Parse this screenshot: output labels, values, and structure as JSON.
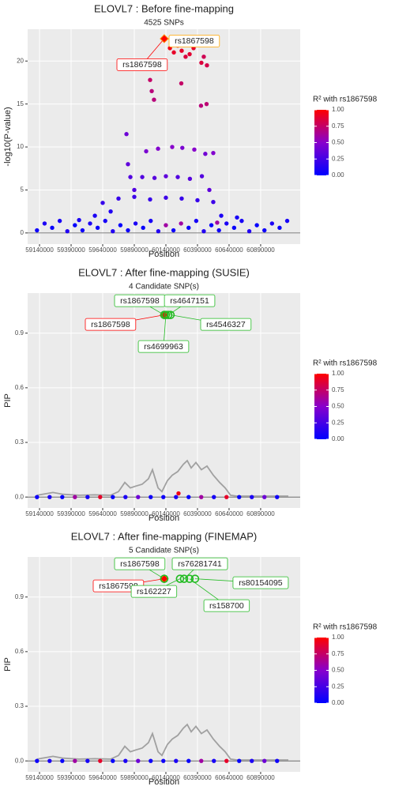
{
  "chart_data": [
    {
      "type": "scatter",
      "title": "ELOVL7 : Before fine-mapping",
      "subtitle": "4525 SNPs",
      "xlabel": "Position",
      "ylabel": "-log10(P-value)",
      "x": [
        60127000,
        60172000,
        60203000,
        60234000,
        60265000,
        60296000,
        60328000,
        60359000,
        60421000,
        60440000,
        60465000,
        60015000,
        60028000,
        60046000,
        60262000,
        60418000,
        60462000,
        59984000,
        60078000,
        60190000,
        60270000,
        60365000,
        60452000,
        60515000,
        59828000,
        59840000,
        59859000,
        59890000,
        59953000,
        60050000,
        60140000,
        60234000,
        60330000,
        60425000,
        60484000,
        59640000,
        59765000,
        59890000,
        60015000,
        60140000,
        60265000,
        60390000,
        60515000,
        59453000,
        59578000,
        59703000,
        60578000,
        60703000,
        60546000,
        59120000,
        59180000,
        59240000,
        59300000,
        59360000,
        59420000,
        59480000,
        59540000,
        59600000,
        59660000,
        59720000,
        59780000,
        59840000,
        59900000,
        59960000,
        60020000,
        60080000,
        60140000,
        60200000,
        60260000,
        60320000,
        60380000,
        60440000,
        60500000,
        60560000,
        60620000,
        60680000,
        60740000,
        60800000,
        60860000,
        60920000,
        60980000,
        61040000,
        61100000
      ],
      "values": [
        22.6,
        21.5,
        21,
        21.8,
        21.2,
        20.5,
        20.8,
        21.5,
        19.8,
        20.5,
        19.5,
        17.8,
        16.5,
        15.5,
        17.4,
        14.8,
        15,
        9.5,
        9.8,
        10,
        9.9,
        9.7,
        9.2,
        9.3,
        11.5,
        8,
        6.5,
        5,
        6.5,
        6.4,
        6.6,
        6.5,
        6.3,
        6.6,
        5,
        3.5,
        4,
        4.2,
        3.9,
        4.1,
        4,
        3.8,
        3.6,
        1.5,
        2,
        2.5,
        2,
        1.8,
        1.2,
        0.3,
        1.1,
        0.6,
        1.4,
        0.2,
        0.9,
        0.3,
        1.1,
        0.6,
        1.4,
        0.2,
        0.9,
        0.3,
        1.1,
        0.6,
        1.4,
        0.2,
        0.9,
        0.3,
        1.1,
        0.6,
        1.4,
        0.2,
        0.9,
        0.3,
        1.1,
        0.6,
        1.4,
        0.2,
        0.9,
        0.3,
        1.1,
        0.6,
        1.4
      ],
      "r2": [
        1,
        0.95,
        0.9,
        0.92,
        0.9,
        0.85,
        0.88,
        0.9,
        0.85,
        0.8,
        0.82,
        0.75,
        0.7,
        0.7,
        0.75,
        0.7,
        0.72,
        0.45,
        0.48,
        0.5,
        0.45,
        0.5,
        0.42,
        0.48,
        0.4,
        0.35,
        0.3,
        0.3,
        0.3,
        0.32,
        0.35,
        0.3,
        0.32,
        0.3,
        0.35,
        0.2,
        0.2,
        0.22,
        0.2,
        0.22,
        0.2,
        0.2,
        0.22,
        0.1,
        0.1,
        0.12,
        0.1,
        0.08,
        0.6,
        0.05,
        0.1,
        0.03,
        0.08,
        0.12,
        0.02,
        0.05,
        0.1,
        0.03,
        0.08,
        0.12,
        0.02,
        0.05,
        0.1,
        0.03,
        0.08,
        0.12,
        0.6,
        0.05,
        0.6,
        0.03,
        0.08,
        0.12,
        0.02,
        0.05,
        0.1,
        0.03,
        0.08,
        0.12,
        0.02,
        0.05,
        0.1,
        0.03,
        0.08
      ],
      "xlim": [
        59046000,
        61203000
      ],
      "xticks": [
        59140000,
        59390000,
        59640000,
        59890000,
        60140000,
        60390000,
        60640000,
        60890000
      ],
      "ylim": [
        -1.3,
        23.7
      ],
      "yticks": [
        0,
        5,
        10,
        15,
        20
      ],
      "hline": 0,
      "grid": true,
      "annotations": [
        {
          "label": "rs1867598",
          "color": "#ff0000",
          "x": 60127000,
          "y": 22.6,
          "marker": "diamond"
        },
        {
          "label": "rs1867598",
          "color": "#ffa500",
          "x": 60127000,
          "y": 22.6
        }
      ],
      "colorbar": {
        "title": "R² with rs1867598",
        "colors": [
          "#0000ff",
          "#8800cc",
          "#ff0000"
        ],
        "ticks": [
          {
            "value": 0,
            "label": "0.00"
          },
          {
            "value": 0.25,
            "label": "0.25"
          },
          {
            "value": 0.5,
            "label": "0.50"
          },
          {
            "value": 0.75,
            "label": "0.75"
          },
          {
            "value": 1,
            "label": "1.00"
          }
        ]
      }
    },
    {
      "type": "scatter",
      "title": "ELOVL7 : After fine-mapping (SUSIE)",
      "subtitle": "4 Candidate SNP(s)",
      "xlabel": "Position",
      "ylabel": "PIP",
      "x": [
        59120000,
        59220000,
        59320000,
        59420000,
        59520000,
        59620000,
        59720000,
        59820000,
        59920000,
        60020000,
        60120000,
        60220000,
        60320000,
        60420000,
        60520000,
        60620000,
        60720000,
        60820000,
        60920000,
        61020000,
        60240000
      ],
      "values": [
        0,
        0,
        0,
        0,
        0,
        0,
        0,
        0,
        0,
        0,
        0,
        0,
        0,
        0,
        0,
        0,
        0,
        0,
        0,
        0,
        0.02
      ],
      "r2": [
        0.05,
        0.1,
        0.03,
        0.6,
        0.08,
        0.9,
        0.02,
        0.1,
        0.4,
        0.05,
        0.05,
        0.1,
        0.03,
        0.6,
        0.08,
        0.9,
        0.02,
        0.1,
        0.4,
        0.05,
        0.95
      ],
      "line": {
        "x": [
          59121000,
          59202000,
          59246000,
          59328000,
          59452000,
          59578000,
          59702000,
          59765000,
          59815000,
          59859000,
          59902000,
          59952000,
          60002000,
          60034000,
          60078000,
          60109000,
          60152000,
          60190000,
          60234000,
          60278000,
          60309000,
          60340000,
          60378000,
          60421000,
          60465000,
          60515000,
          60565000,
          60609000,
          60652000,
          60702000,
          61109000
        ],
        "values": [
          0.01,
          0.02,
          0.025,
          0.015,
          0.01,
          0.012,
          0.01,
          0.03,
          0.08,
          0.05,
          0.06,
          0.07,
          0.1,
          0.15,
          0.05,
          0.03,
          0.09,
          0.12,
          0.14,
          0.18,
          0.2,
          0.16,
          0.19,
          0.15,
          0.17,
          0.12,
          0.08,
          0.05,
          0.01,
          0.005,
          0.005
        ],
        "color": "#a0a0a0"
      },
      "xlim": [
        59046000,
        61203000
      ],
      "xticks": [
        59140000,
        59390000,
        59640000,
        59890000,
        60140000,
        60390000,
        60640000,
        60890000
      ],
      "ylim": [
        -0.06,
        1.12
      ],
      "yticks": [
        {
          "value": 0,
          "label": "0.0"
        },
        0.3,
        0.6,
        0.9
      ],
      "hline": 0,
      "grid": true,
      "annotations": [
        {
          "label": "rs1867598",
          "color": "#ff0000",
          "x": 60127000,
          "y": 1,
          "marker": "diamond"
        },
        {
          "label": "rs1867598",
          "color": "#22bb22",
          "x": 60127000,
          "y": 1,
          "marker": "circle"
        },
        {
          "label": "rs4647151",
          "color": "#22bb22",
          "x": 60159000,
          "y": 1,
          "marker": "circle"
        },
        {
          "label": "rs4699963",
          "color": "#22bb22",
          "x": 60140000,
          "y": 1,
          "marker": "circle"
        },
        {
          "label": "rs4546327",
          "color": "#22bb22",
          "x": 60177000,
          "y": 1,
          "marker": "circle"
        }
      ],
      "colorbar": {
        "title": "R² with rs1867598",
        "colors": [
          "#0000ff",
          "#8800cc",
          "#ff0000"
        ],
        "ticks": [
          {
            "value": 0,
            "label": "0.00"
          },
          {
            "value": 0.25,
            "label": "0.25"
          },
          {
            "value": 0.5,
            "label": "0.50"
          },
          {
            "value": 0.75,
            "label": "0.75"
          },
          {
            "value": 1,
            "label": "1.00"
          }
        ]
      }
    },
    {
      "type": "scatter",
      "title": "ELOVL7 : After fine-mapping (FINEMAP)",
      "subtitle": "5 Candidate SNP(s)",
      "xlabel": "Position",
      "ylabel": "PIP",
      "x": [
        59120000,
        59220000,
        59320000,
        59420000,
        59520000,
        59620000,
        59720000,
        59820000,
        59920000,
        60020000,
        60120000,
        60220000,
        60320000,
        60420000,
        60520000,
        60620000,
        60720000,
        60820000,
        60920000,
        61020000
      ],
      "values": [
        0,
        0,
        0,
        0,
        0,
        0,
        0,
        0,
        0,
        0,
        0,
        0,
        0,
        0,
        0,
        0,
        0,
        0,
        0,
        0
      ],
      "r2": [
        0.05,
        0.1,
        0.03,
        0.6,
        0.08,
        0.9,
        0.02,
        0.1,
        0.4,
        0.05,
        0.05,
        0.1,
        0.03,
        0.6,
        0.08,
        0.9,
        0.02,
        0.1,
        0.4,
        0.05
      ],
      "line": {
        "x": [
          59121000,
          59202000,
          59246000,
          59328000,
          59452000,
          59578000,
          59702000,
          59765000,
          59815000,
          59859000,
          59902000,
          59952000,
          60002000,
          60034000,
          60078000,
          60109000,
          60152000,
          60190000,
          60234000,
          60278000,
          60309000,
          60340000,
          60378000,
          60421000,
          60465000,
          60515000,
          60565000,
          60609000,
          60652000,
          60702000,
          61109000
        ],
        "values": [
          0.01,
          0.02,
          0.025,
          0.015,
          0.01,
          0.012,
          0.01,
          0.03,
          0.08,
          0.05,
          0.06,
          0.07,
          0.1,
          0.15,
          0.05,
          0.03,
          0.09,
          0.12,
          0.14,
          0.18,
          0.2,
          0.16,
          0.19,
          0.15,
          0.17,
          0.12,
          0.08,
          0.05,
          0.01,
          0.005,
          0.005
        ],
        "color": "#a0a0a0"
      },
      "xlim": [
        59046000,
        61203000
      ],
      "xticks": [
        59140000,
        59390000,
        59640000,
        59890000,
        60140000,
        60390000,
        60640000,
        60890000
      ],
      "ylim": [
        -0.06,
        1.12
      ],
      "yticks": [
        {
          "value": 0,
          "label": "0.0"
        },
        0.3,
        0.6,
        0.9
      ],
      "hline": 0,
      "grid": true,
      "annotations": [
        {
          "label": "rs1867598",
          "color": "#ff0000",
          "x": 60127000,
          "y": 1,
          "marker": "diamond"
        },
        {
          "label": "rs1867598",
          "color": "#22bb22",
          "x": 60127000,
          "y": 1,
          "marker": "circle"
        },
        {
          "label": "rs76281741",
          "color": "#22bb22",
          "x": 60284000,
          "y": 1,
          "marker": "circle"
        },
        {
          "label": "rs162227",
          "color": "#22bb22",
          "x": 60252000,
          "y": 1,
          "marker": "circle"
        },
        {
          "label": "rs80154095",
          "color": "#22bb22",
          "x": 60371000,
          "y": 1,
          "marker": "circle"
        },
        {
          "label": "rs158700",
          "color": "#22bb22",
          "x": 60327000,
          "y": 1,
          "marker": "circle"
        }
      ],
      "colorbar": {
        "title": "R² with rs1867598",
        "colors": [
          "#0000ff",
          "#8800cc",
          "#ff0000"
        ],
        "ticks": [
          {
            "value": 0,
            "label": "0.00"
          },
          {
            "value": 0.25,
            "label": "0.25"
          },
          {
            "value": 0.5,
            "label": "0.50"
          },
          {
            "value": 0.75,
            "label": "0.75"
          },
          {
            "value": 1,
            "label": "1.00"
          }
        ]
      }
    }
  ]
}
